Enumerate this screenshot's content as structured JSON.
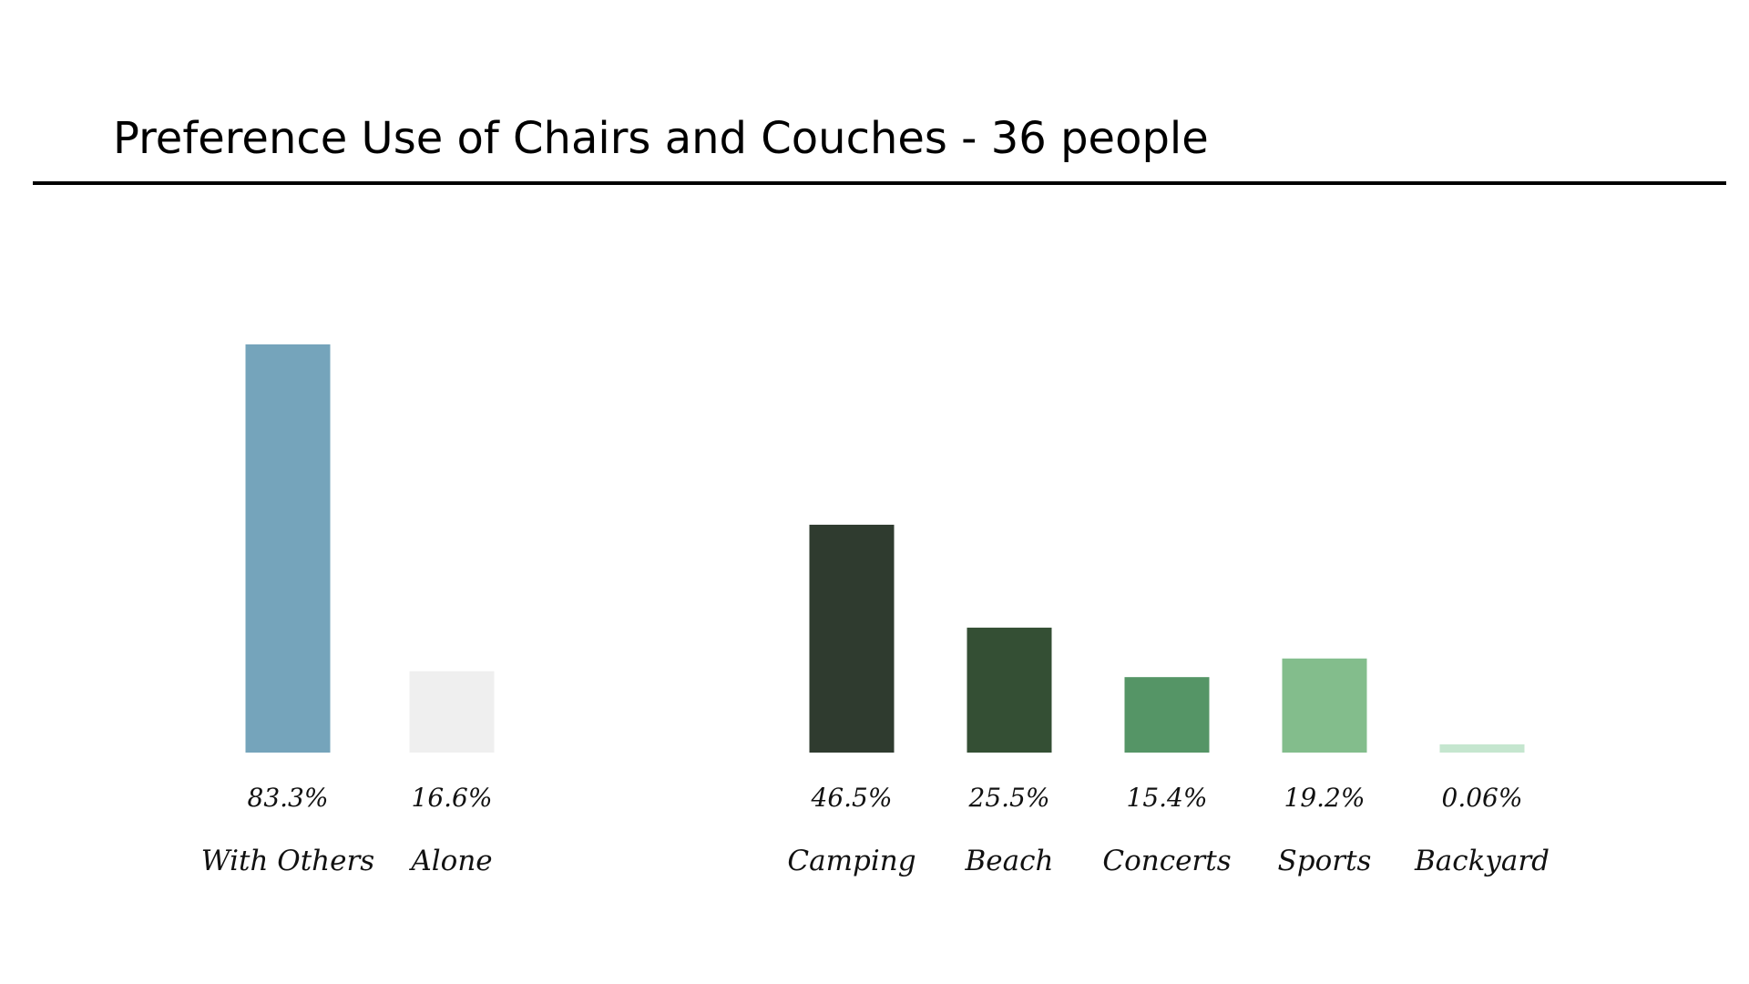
{
  "title": "Preference Use of Chairs and Couches - 36 people",
  "chart_data": [
    {
      "type": "bar",
      "categories": [
        "With Others",
        "Alone"
      ],
      "values": [
        83.3,
        16.6
      ],
      "value_labels": [
        "83.3%",
        "16.6%"
      ],
      "colors": [
        "#75a4bb",
        "#efefef"
      ],
      "ylim": [
        0,
        100
      ],
      "grid": false
    },
    {
      "type": "bar",
      "categories": [
        "Camping",
        "Beach",
        "Concerts",
        "Sports",
        "Backyard"
      ],
      "values": [
        46.5,
        25.5,
        15.4,
        19.2,
        0.06
      ],
      "value_labels": [
        "46.5%",
        "25.5%",
        "15.4%",
        "19.2%",
        "0.06%"
      ],
      "colors": [
        "#2f3b2f",
        "#344f34",
        "#559566",
        "#83bd8c",
        "#c5e6cf"
      ],
      "ylim": [
        0,
        100
      ],
      "grid": false
    }
  ]
}
